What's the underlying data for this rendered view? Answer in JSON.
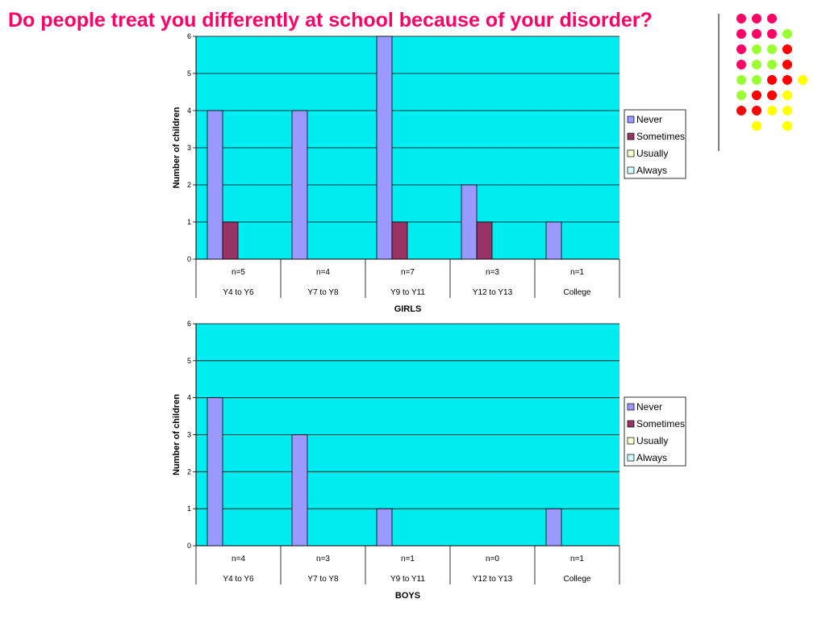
{
  "title": "Do people treat you differently at school because of your disorder?",
  "colors": {
    "title": "#ff0066",
    "plot_bg": "#00ecf0",
    "never": "#9999ff",
    "sometimes": "#993366",
    "usually": "#ffffcc",
    "always": "#ccffff",
    "dot_pink": "#ff0066",
    "dot_green": "#99ff33",
    "dot_red": "#ff0000",
    "dot_yellow": "#ffff00",
    "deco_line": "#555555"
  },
  "decoration": {
    "dots": [
      [
        "pink",
        "pink",
        "pink",
        null
      ],
      [
        "pink",
        "pink",
        "pink",
        "green"
      ],
      [
        "pink",
        "green",
        "green",
        "red"
      ],
      [
        "pink",
        "green",
        "green",
        "red"
      ],
      [
        "green",
        "green",
        "red",
        "red",
        "yellow"
      ],
      [
        "green",
        "red",
        "red",
        "yellow"
      ],
      [
        "red",
        "red",
        "yellow",
        "yellow"
      ],
      [
        null,
        "yellow",
        null,
        "yellow"
      ]
    ]
  },
  "chart_data": [
    {
      "type": "bar",
      "xlabel": "GIRLS",
      "ylabel": "Number of children",
      "ylim": [
        0,
        6
      ],
      "yticks": [
        0,
        1,
        2,
        3,
        4,
        5,
        6
      ],
      "grid": true,
      "legend_position": "right",
      "categories": [
        "Y4 to Y6",
        "Y7 to Y8",
        "Y9 to Y11",
        "Y12 to Y13",
        "College"
      ],
      "sample_sizes": [
        "n=5",
        "n=4",
        "n=7",
        "n=3",
        "n=1"
      ],
      "series": [
        {
          "name": "Never",
          "values": [
            4,
            4,
            6,
            2,
            1
          ]
        },
        {
          "name": "Sometimes",
          "values": [
            1,
            0,
            1,
            1,
            0
          ]
        },
        {
          "name": "Usually",
          "values": [
            0,
            0,
            0,
            0,
            0
          ]
        },
        {
          "name": "Always",
          "values": [
            0,
            0,
            0,
            0,
            0
          ]
        }
      ]
    },
    {
      "type": "bar",
      "xlabel": "BOYS",
      "ylabel": "Number of children",
      "ylim": [
        0,
        6
      ],
      "yticks": [
        0,
        1,
        2,
        3,
        4,
        5,
        6
      ],
      "grid": true,
      "legend_position": "right",
      "categories": [
        "Y4 to Y6",
        "Y7 to Y8",
        "Y9 to Y11",
        "Y12 to Y13",
        "College"
      ],
      "sample_sizes": [
        "n=4",
        "n=3",
        "n=1",
        "n=0",
        "n=1"
      ],
      "series": [
        {
          "name": "Never",
          "values": [
            4,
            3,
            1,
            0,
            1
          ]
        },
        {
          "name": "Sometimes",
          "values": [
            0,
            0,
            0,
            0,
            0
          ]
        },
        {
          "name": "Usually",
          "values": [
            0,
            0,
            0,
            0,
            0
          ]
        },
        {
          "name": "Always",
          "values": [
            0,
            0,
            0,
            0,
            0
          ]
        }
      ]
    }
  ]
}
